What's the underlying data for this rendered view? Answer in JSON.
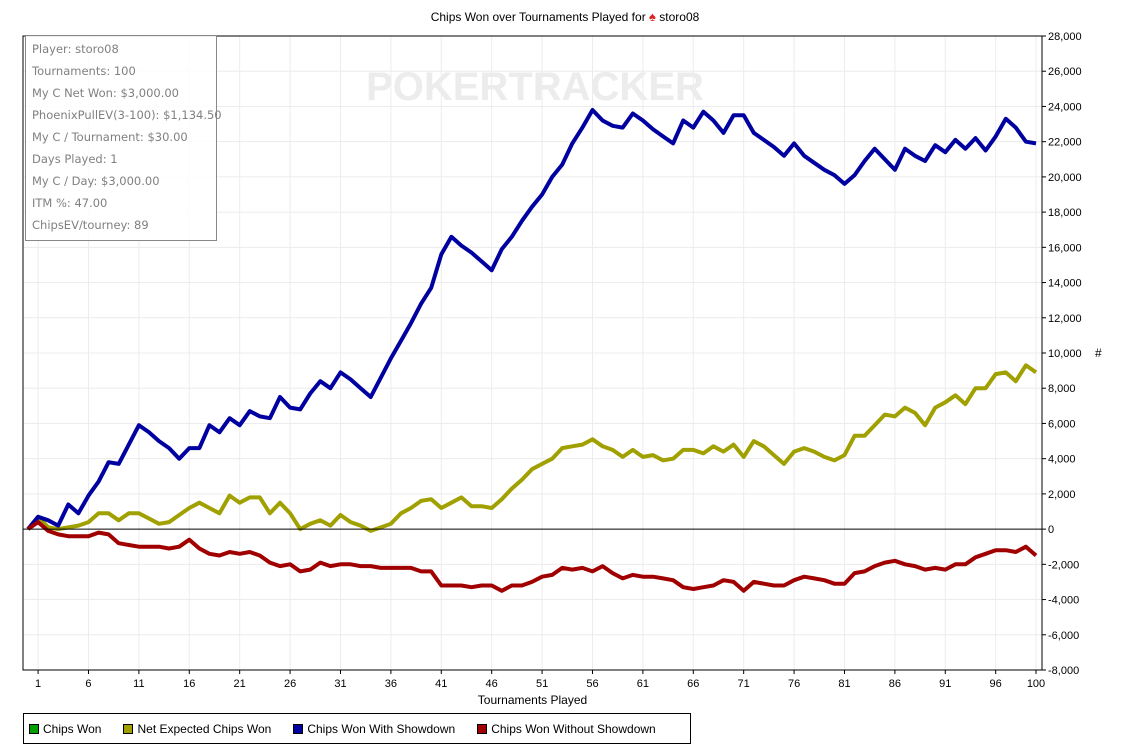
{
  "header": {
    "title": "Chips Won over Tournaments Played for",
    "player_icon": "pokerstars-spade-icon",
    "player": "storo08"
  },
  "info_box": [
    "Player: storo08",
    "Tournaments: 100",
    "My C Net Won: $3,000.00",
    "PhoenixPullEV(3-100): $1,134.50",
    "My C / Tournament: $30.00",
    "Days Played: 1",
    "My C / Day: $3,000.00",
    "ITM %: 47.00",
    "ChipsEV/tourney: 89"
  ],
  "watermark": "POKERTRACKER",
  "chart_data": {
    "type": "line",
    "title": "Chips Won over Tournaments Played for storo08",
    "xlabel": "Tournaments Played",
    "ylabel": "#",
    "xlim": [
      0,
      100
    ],
    "ylim": [
      -8000,
      28000
    ],
    "grid": true,
    "legend_position": "bottom",
    "x_ticks": [
      1,
      6,
      11,
      16,
      21,
      26,
      31,
      36,
      41,
      46,
      51,
      56,
      61,
      66,
      71,
      76,
      81,
      86,
      91,
      96,
      100
    ],
    "x_tick_labels": [
      "1",
      "6",
      "11",
      "16",
      "21",
      "26",
      "31",
      "36",
      "41",
      "46",
      "51",
      "56",
      "61",
      "66",
      "71",
      "76",
      "81",
      "86",
      "91",
      "96",
      "100"
    ],
    "y_ticks": [
      -8000,
      -6000,
      -4000,
      -2000,
      0,
      2000,
      4000,
      6000,
      8000,
      10000,
      12000,
      14000,
      16000,
      18000,
      20000,
      22000,
      24000,
      26000,
      28000
    ],
    "y_tick_labels": [
      "-8,000",
      "-6,000",
      "-4,000",
      "-2,000",
      "0",
      "2,000",
      "4,000",
      "6,000",
      "8,000",
      "10,000",
      "12,000",
      "14,000",
      "16,000",
      "18,000",
      "20,000",
      "22,000",
      "24,000",
      "26,000",
      "28,000"
    ],
    "series": [
      {
        "name": "Chips Won",
        "color": "#00a000",
        "values": []
      },
      {
        "name": "Net Expected Chips Won",
        "color": "#a0a000",
        "values": [
          0,
          700,
          100,
          0,
          100,
          200,
          400,
          900,
          900,
          500,
          900,
          900,
          600,
          300,
          400,
          800,
          1200,
          1500,
          1200,
          900,
          1900,
          1500,
          1800,
          1800,
          900,
          1500,
          900,
          0,
          300,
          500,
          200,
          800,
          400,
          200,
          -100,
          100,
          300,
          900,
          1200,
          1600,
          1700,
          1200,
          1500,
          1800,
          1300,
          1300,
          1200,
          1700,
          2300,
          2800,
          3400,
          3700,
          4000,
          4600,
          4700,
          4800,
          5100,
          4700,
          4500,
          4100,
          4500,
          4100,
          4200,
          3900,
          4000,
          4500,
          4500,
          4300,
          4700,
          4400,
          4800,
          4100,
          5000,
          4700,
          4200,
          3700,
          4400,
          4600,
          4400,
          4100,
          3900,
          4200,
          5300,
          5300,
          5900,
          6500,
          6400,
          6900,
          6600,
          5900,
          6900,
          7200,
          7600,
          7100,
          8000,
          8000,
          8800,
          8900,
          8400,
          9300,
          8900
        ]
      },
      {
        "name": "Chips Won With Showdown",
        "color": "#0000a0",
        "values": [
          0,
          700,
          500,
          200,
          1400,
          900,
          1900,
          2700,
          3800,
          3700,
          4800,
          5900,
          5500,
          5000,
          4600,
          4000,
          4600,
          4600,
          5900,
          5500,
          6300,
          5900,
          6700,
          6400,
          6300,
          7500,
          6900,
          6800,
          7700,
          8400,
          8000,
          8900,
          8500,
          8000,
          7500,
          8600,
          9700,
          10700,
          11700,
          12800,
          13700,
          15600,
          16600,
          16100,
          15700,
          15200,
          14700,
          15900,
          16600,
          17500,
          18300,
          19000,
          20000,
          20700,
          21900,
          22800,
          23800,
          23200,
          22900,
          22800,
          23600,
          23200,
          22700,
          22300,
          21900,
          23200,
          22800,
          23700,
          23200,
          22500,
          23500,
          23500,
          22500,
          22100,
          21700,
          21200,
          21900,
          21200,
          20800,
          20400,
          20100,
          19600,
          20100,
          20900,
          21600,
          21000,
          20400,
          21600,
          21200,
          20900,
          21800,
          21400,
          22100,
          21600,
          22200,
          21500,
          22300,
          23300,
          22800,
          22000,
          21900
        ]
      },
      {
        "name": "Chips Won Without Showdown",
        "color": "#a00000",
        "values": [
          0,
          400,
          -100,
          -300,
          -400,
          -400,
          -400,
          -200,
          -300,
          -800,
          -900,
          -1000,
          -1000,
          -1000,
          -1100,
          -1000,
          -600,
          -1100,
          -1400,
          -1500,
          -1300,
          -1400,
          -1300,
          -1500,
          -1900,
          -2100,
          -2000,
          -2400,
          -2300,
          -1900,
          -2100,
          -2000,
          -2000,
          -2100,
          -2100,
          -2200,
          -2200,
          -2200,
          -2200,
          -2400,
          -2400,
          -3200,
          -3200,
          -3200,
          -3300,
          -3200,
          -3200,
          -3500,
          -3200,
          -3200,
          -3000,
          -2700,
          -2600,
          -2200,
          -2300,
          -2200,
          -2400,
          -2100,
          -2500,
          -2800,
          -2600,
          -2700,
          -2700,
          -2800,
          -2900,
          -3300,
          -3400,
          -3300,
          -3200,
          -2900,
          -3000,
          -3500,
          -3000,
          -3100,
          -3200,
          -3200,
          -2900,
          -2700,
          -2800,
          -2900,
          -3100,
          -3100,
          -2500,
          -2400,
          -2100,
          -1900,
          -1800,
          -2000,
          -2100,
          -2300,
          -2200,
          -2300,
          -2000,
          -2000,
          -1600,
          -1400,
          -1200,
          -1200,
          -1300,
          -1000,
          -1500
        ]
      }
    ]
  }
}
